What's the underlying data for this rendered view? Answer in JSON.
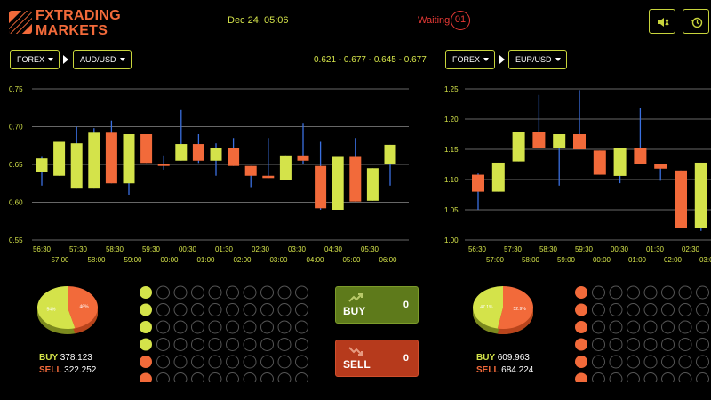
{
  "header": {
    "logo_line1": "FXTRADING",
    "logo_line2": "MARKETS",
    "datetime": "Dec 24, 05:06",
    "status_label": "Waiting",
    "counter": "01",
    "sound_icon": "speaker-icon",
    "history_icon": "history-icon"
  },
  "colors": {
    "bull": "#d4e34a",
    "bear": "#f26a3a",
    "wick": "#3a6fe0",
    "accent": "#c8d43c",
    "buy_bg": "#5e7a1b",
    "sell_bg": "#b63a1c"
  },
  "left_panel": {
    "market_select": "FOREX",
    "pair_select": "AUD/USD",
    "quote": "0.621 - 0.677 - 0.645 - 0.677",
    "pie": {
      "buy_pct": 54,
      "sell_pct": 46,
      "buy_label": "54%",
      "sell_label": "46%"
    },
    "totals": {
      "buy_label": "BUY",
      "buy_value": "378.123",
      "sell_label": "SELL",
      "sell_value": "322.252"
    },
    "dots_first_column": [
      "buy",
      "buy",
      "buy",
      "buy",
      "sell",
      "sell"
    ],
    "buy_button": {
      "label": "BUY",
      "count": "0"
    },
    "sell_button": {
      "label": "SELL",
      "count": "0"
    }
  },
  "right_panel": {
    "market_select": "FOREX",
    "pair_select": "EUR/USD",
    "pie": {
      "buy_pct": 47.1,
      "sell_pct": 52.9,
      "buy_label": "47.1%",
      "sell_label": "52.9%"
    },
    "totals": {
      "buy_label": "BUY",
      "buy_value": "609.963",
      "sell_label": "SELL",
      "sell_value": "684.224"
    },
    "dots_first_column": [
      "sell",
      "sell",
      "sell",
      "sell",
      "sell",
      "sell"
    ]
  },
  "chart_data": [
    {
      "type": "candlestick",
      "ylim": [
        0.55,
        0.75
      ],
      "yticks": [
        "0.75",
        "0.70",
        "0.65",
        "0.60",
        "0.55"
      ],
      "xticks_top": [
        "56:30",
        "57:30",
        "58:30",
        "59:30",
        "00:30",
        "01:30",
        "02:30",
        "03:30",
        "04:30",
        "05:30"
      ],
      "xticks_bottom": [
        "57:00",
        "58:00",
        "59:00",
        "00:00",
        "01:00",
        "02:00",
        "03:00",
        "04:00",
        "05:00",
        "06:00"
      ],
      "candles": [
        {
          "o": 0.64,
          "c": 0.658,
          "h": 0.66,
          "l": 0.622
        },
        {
          "o": 0.635,
          "c": 0.68,
          "h": 0.68,
          "l": 0.635
        },
        {
          "o": 0.618,
          "c": 0.678,
          "h": 0.7,
          "l": 0.618
        },
        {
          "o": 0.618,
          "c": 0.692,
          "h": 0.698,
          "l": 0.618
        },
        {
          "o": 0.692,
          "c": 0.625,
          "h": 0.708,
          "l": 0.625
        },
        {
          "o": 0.625,
          "c": 0.69,
          "h": 0.69,
          "l": 0.61
        },
        {
          "o": 0.69,
          "c": 0.652,
          "h": 0.69,
          "l": 0.652
        },
        {
          "o": 0.65,
          "c": 0.648,
          "h": 0.662,
          "l": 0.643
        },
        {
          "o": 0.655,
          "c": 0.677,
          "h": 0.722,
          "l": 0.655
        },
        {
          "o": 0.677,
          "c": 0.655,
          "h": 0.69,
          "l": 0.652
        },
        {
          "o": 0.655,
          "c": 0.672,
          "h": 0.678,
          "l": 0.635
        },
        {
          "o": 0.672,
          "c": 0.648,
          "h": 0.685,
          "l": 0.648
        },
        {
          "o": 0.648,
          "c": 0.635,
          "h": 0.648,
          "l": 0.62
        },
        {
          "o": 0.635,
          "c": 0.632,
          "h": 0.685,
          "l": 0.632
        },
        {
          "o": 0.63,
          "c": 0.662,
          "h": 0.662,
          "l": 0.63
        },
        {
          "o": 0.662,
          "c": 0.655,
          "h": 0.705,
          "l": 0.65
        },
        {
          "o": 0.648,
          "c": 0.592,
          "h": 0.68,
          "l": 0.59
        },
        {
          "o": 0.59,
          "c": 0.66,
          "h": 0.66,
          "l": 0.59
        },
        {
          "o": 0.66,
          "c": 0.601,
          "h": 0.685,
          "l": 0.601
        },
        {
          "o": 0.602,
          "c": 0.645,
          "h": 0.645,
          "l": 0.602
        },
        {
          "o": 0.65,
          "c": 0.676,
          "h": 0.676,
          "l": 0.622
        }
      ]
    },
    {
      "type": "candlestick",
      "ylim": [
        1.0,
        1.25
      ],
      "yticks": [
        "1.25",
        "1.20",
        "1.15",
        "1.10",
        "1.05",
        "1.00"
      ],
      "xticks_top": [
        "56:30",
        "57:30",
        "58:30",
        "59:30",
        "00:30",
        "01:30",
        "02:30"
      ],
      "xticks_bottom": [
        "57:00",
        "58:00",
        "59:00",
        "00:00",
        "01:00",
        "02:00",
        "03:00"
      ],
      "candles": [
        {
          "o": 1.108,
          "c": 1.08,
          "h": 1.11,
          "l": 1.05
        },
        {
          "o": 1.08,
          "c": 1.128,
          "h": 1.128,
          "l": 1.08
        },
        {
          "o": 1.13,
          "c": 1.178,
          "h": 1.178,
          "l": 1.13
        },
        {
          "o": 1.178,
          "c": 1.152,
          "h": 1.24,
          "l": 1.152
        },
        {
          "o": 1.152,
          "c": 1.175,
          "h": 1.175,
          "l": 1.09
        },
        {
          "o": 1.175,
          "c": 1.15,
          "h": 1.248,
          "l": 1.15
        },
        {
          "o": 1.148,
          "c": 1.108,
          "h": 1.148,
          "l": 1.108
        },
        {
          "o": 1.106,
          "c": 1.152,
          "h": 1.152,
          "l": 1.094
        },
        {
          "o": 1.152,
          "c": 1.126,
          "h": 1.218,
          "l": 1.126
        },
        {
          "o": 1.125,
          "c": 1.118,
          "h": 1.125,
          "l": 1.098
        },
        {
          "o": 1.115,
          "c": 1.02,
          "h": 1.115,
          "l": 1.02
        },
        {
          "o": 1.02,
          "c": 1.128,
          "h": 1.128,
          "l": 1.015
        },
        {
          "o": 1.13,
          "c": 1.105,
          "h": 1.15,
          "l": 1.105
        }
      ]
    }
  ]
}
